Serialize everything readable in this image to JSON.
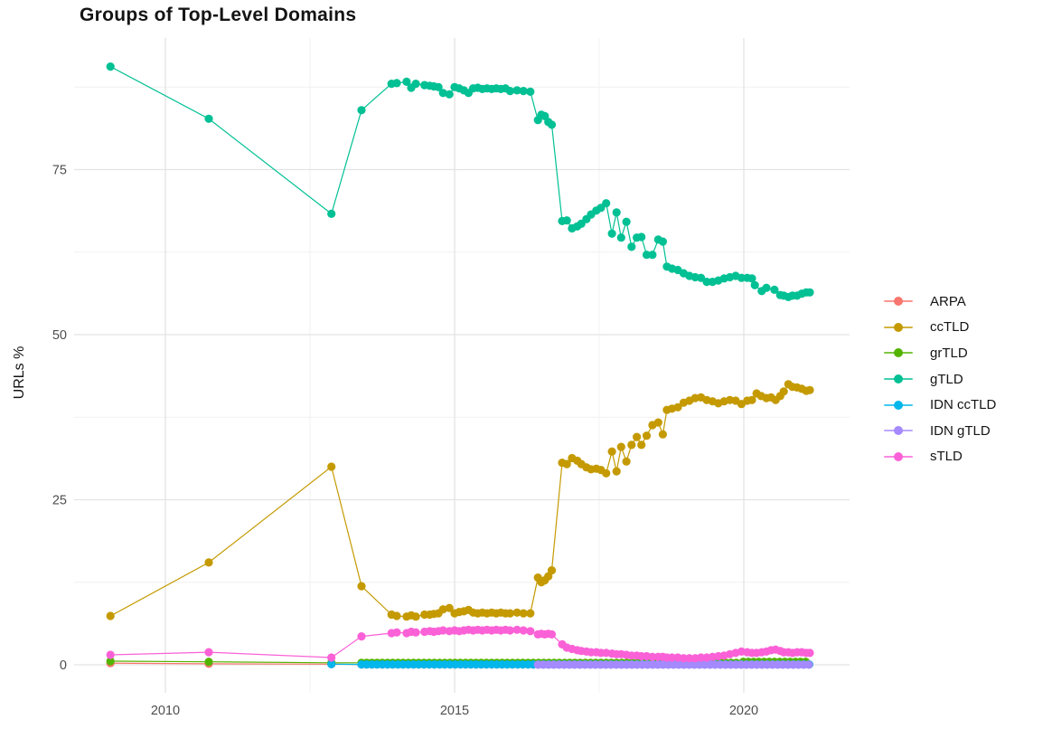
{
  "title": "Groups of Top-Level Domains",
  "y_axis": {
    "label": "URLs %",
    "tick_labels": [
      "0",
      "25",
      "50",
      "75"
    ]
  },
  "x_axis": {
    "tick_labels": [
      "2010",
      "2015",
      "2020"
    ]
  },
  "chart_data": {
    "type": "line",
    "title": "Groups of Top-Level Domains",
    "xlabel": "",
    "ylabel": "URLs %",
    "xlim": [
      2008.4,
      2021.8
    ],
    "ylim": [
      -2.5,
      95
    ],
    "x_ticks": [
      2010,
      2015,
      2020
    ],
    "x_minor_ticks": [
      2012.5,
      2017.5
    ],
    "y_ticks": [
      0,
      25,
      50,
      75
    ],
    "y_minor_ticks": [
      12.5,
      37.5,
      62.5,
      87.5
    ],
    "grid": "major+minor",
    "legend_position": "right",
    "point_radius": 4.6,
    "series": [
      {
        "name": "ARPA",
        "color": "#F8766D",
        "points": [
          [
            2009.05,
            0.25
          ],
          [
            2010.75,
            0.15
          ],
          [
            2012.87,
            0.1
          ]
        ],
        "flat_runs": [
          {
            "from": 2013.39,
            "to": 2021.14,
            "step": 0.09,
            "value": 0.05
          }
        ]
      },
      {
        "name": "ccTLD",
        "color": "#C49A00",
        "points": [
          [
            2009.05,
            7.4
          ],
          [
            2010.75,
            15.5
          ],
          [
            2012.87,
            30.0
          ],
          [
            2013.39,
            11.9
          ],
          [
            2013.91,
            7.6
          ],
          [
            2014.0,
            7.4
          ],
          [
            2014.17,
            7.3
          ],
          [
            2014.25,
            7.5
          ],
          [
            2014.33,
            7.3
          ],
          [
            2014.48,
            7.6
          ],
          [
            2014.57,
            7.6
          ],
          [
            2014.64,
            7.7
          ],
          [
            2014.72,
            7.8
          ],
          [
            2014.8,
            8.4
          ],
          [
            2014.91,
            8.6
          ],
          [
            2015.0,
            7.8
          ],
          [
            2015.08,
            8.0
          ],
          [
            2015.16,
            8.1
          ],
          [
            2015.24,
            8.3
          ],
          [
            2015.32,
            7.9
          ],
          [
            2015.4,
            7.8
          ],
          [
            2015.48,
            7.9
          ],
          [
            2015.56,
            7.8
          ],
          [
            2015.64,
            7.9
          ],
          [
            2015.72,
            7.8
          ],
          [
            2015.8,
            7.9
          ],
          [
            2015.88,
            7.8
          ],
          [
            2015.96,
            7.8
          ],
          [
            2016.08,
            7.9
          ],
          [
            2016.19,
            7.8
          ],
          [
            2016.31,
            7.8
          ],
          [
            2016.44,
            13.2
          ],
          [
            2016.5,
            12.5
          ],
          [
            2016.56,
            12.8
          ],
          [
            2016.62,
            13.4
          ],
          [
            2016.68,
            14.3
          ],
          [
            2016.86,
            30.6
          ],
          [
            2016.94,
            30.4
          ],
          [
            2017.03,
            31.3
          ],
          [
            2017.12,
            30.9
          ],
          [
            2017.19,
            30.4
          ],
          [
            2017.28,
            29.9
          ],
          [
            2017.36,
            29.6
          ],
          [
            2017.45,
            29.7
          ],
          [
            2017.53,
            29.5
          ],
          [
            2017.62,
            29.0
          ],
          [
            2017.72,
            32.3
          ],
          [
            2017.8,
            29.3
          ],
          [
            2017.88,
            33.0
          ],
          [
            2017.97,
            30.8
          ],
          [
            2018.06,
            33.3
          ],
          [
            2018.15,
            34.5
          ],
          [
            2018.23,
            33.3
          ],
          [
            2018.32,
            34.7
          ],
          [
            2018.42,
            36.3
          ],
          [
            2018.52,
            36.7
          ],
          [
            2018.6,
            34.9
          ],
          [
            2018.67,
            38.6
          ],
          [
            2018.76,
            38.8
          ],
          [
            2018.86,
            39.0
          ],
          [
            2018.96,
            39.7
          ],
          [
            2019.06,
            40.0
          ],
          [
            2019.16,
            40.4
          ],
          [
            2019.26,
            40.5
          ],
          [
            2019.36,
            40.1
          ],
          [
            2019.46,
            39.9
          ],
          [
            2019.56,
            39.6
          ],
          [
            2019.66,
            39.9
          ],
          [
            2019.76,
            40.1
          ],
          [
            2019.86,
            40.0
          ],
          [
            2019.96,
            39.5
          ],
          [
            2020.06,
            40.0
          ],
          [
            2020.14,
            40.1
          ],
          [
            2020.22,
            41.1
          ],
          [
            2020.3,
            40.7
          ],
          [
            2020.39,
            40.4
          ],
          [
            2020.47,
            40.5
          ],
          [
            2020.55,
            40.1
          ],
          [
            2020.63,
            40.7
          ],
          [
            2020.69,
            41.4
          ],
          [
            2020.77,
            42.5
          ],
          [
            2020.84,
            42.1
          ],
          [
            2020.92,
            42.0
          ],
          [
            2021.0,
            41.8
          ],
          [
            2021.08,
            41.5
          ],
          [
            2021.14,
            41.6
          ]
        ]
      },
      {
        "name": "grTLD",
        "color": "#53B400",
        "points": [
          [
            2009.05,
            0.55
          ],
          [
            2010.75,
            0.45
          ],
          [
            2012.87,
            0.3
          ]
        ],
        "flat_runs": [
          {
            "from": 2013.39,
            "to": 2019.9,
            "step": 0.09,
            "value": 0.3
          },
          {
            "from": 2019.99,
            "to": 2021.14,
            "step": 0.09,
            "value": 0.45
          }
        ]
      },
      {
        "name": "gTLD",
        "color": "#00C094",
        "points": [
          [
            2009.05,
            90.6
          ],
          [
            2010.75,
            82.7
          ],
          [
            2012.87,
            68.3
          ],
          [
            2013.39,
            84.0
          ],
          [
            2013.91,
            88.0
          ],
          [
            2014.0,
            88.1
          ],
          [
            2014.17,
            88.3
          ],
          [
            2014.25,
            87.4
          ],
          [
            2014.33,
            88.0
          ],
          [
            2014.48,
            87.8
          ],
          [
            2014.57,
            87.7
          ],
          [
            2014.64,
            87.6
          ],
          [
            2014.72,
            87.5
          ],
          [
            2014.8,
            86.6
          ],
          [
            2014.91,
            86.4
          ],
          [
            2015.0,
            87.5
          ],
          [
            2015.08,
            87.3
          ],
          [
            2015.16,
            87.0
          ],
          [
            2015.24,
            86.6
          ],
          [
            2015.32,
            87.3
          ],
          [
            2015.4,
            87.4
          ],
          [
            2015.48,
            87.2
          ],
          [
            2015.56,
            87.3
          ],
          [
            2015.64,
            87.2
          ],
          [
            2015.72,
            87.3
          ],
          [
            2015.8,
            87.2
          ],
          [
            2015.88,
            87.3
          ],
          [
            2015.96,
            86.9
          ],
          [
            2016.08,
            87.0
          ],
          [
            2016.19,
            86.9
          ],
          [
            2016.31,
            86.8
          ],
          [
            2016.44,
            82.5
          ],
          [
            2016.5,
            83.3
          ],
          [
            2016.56,
            83.1
          ],
          [
            2016.62,
            82.2
          ],
          [
            2016.68,
            81.8
          ],
          [
            2016.86,
            67.2
          ],
          [
            2016.94,
            67.3
          ],
          [
            2017.03,
            66.1
          ],
          [
            2017.12,
            66.4
          ],
          [
            2017.19,
            66.8
          ],
          [
            2017.28,
            67.5
          ],
          [
            2017.36,
            68.2
          ],
          [
            2017.45,
            68.8
          ],
          [
            2017.53,
            69.2
          ],
          [
            2017.62,
            69.9
          ],
          [
            2017.72,
            65.3
          ],
          [
            2017.8,
            68.5
          ],
          [
            2017.88,
            64.7
          ],
          [
            2017.97,
            67.1
          ],
          [
            2018.06,
            63.3
          ],
          [
            2018.15,
            64.7
          ],
          [
            2018.23,
            64.8
          ],
          [
            2018.32,
            62.1
          ],
          [
            2018.42,
            62.1
          ],
          [
            2018.52,
            64.4
          ],
          [
            2018.6,
            64.1
          ],
          [
            2018.67,
            60.3
          ],
          [
            2018.76,
            60.0
          ],
          [
            2018.86,
            59.8
          ],
          [
            2018.96,
            59.3
          ],
          [
            2019.06,
            58.9
          ],
          [
            2019.16,
            58.7
          ],
          [
            2019.26,
            58.6
          ],
          [
            2019.36,
            58.0
          ],
          [
            2019.46,
            58.0
          ],
          [
            2019.56,
            58.2
          ],
          [
            2019.66,
            58.5
          ],
          [
            2019.76,
            58.7
          ],
          [
            2019.86,
            58.9
          ],
          [
            2019.96,
            58.6
          ],
          [
            2020.06,
            58.6
          ],
          [
            2020.14,
            58.5
          ],
          [
            2020.19,
            57.5
          ],
          [
            2020.31,
            56.6
          ],
          [
            2020.39,
            57.1
          ],
          [
            2020.53,
            56.8
          ],
          [
            2020.63,
            56.0
          ],
          [
            2020.69,
            55.9
          ],
          [
            2020.77,
            55.7
          ],
          [
            2020.84,
            55.9
          ],
          [
            2020.92,
            55.9
          ],
          [
            2021.0,
            56.2
          ],
          [
            2021.08,
            56.4
          ],
          [
            2021.14,
            56.4
          ]
        ]
      },
      {
        "name": "IDN ccTLD",
        "color": "#00B6EB",
        "points": [
          [
            2012.87,
            0.1
          ]
        ],
        "flat_runs": [
          {
            "from": 2013.39,
            "to": 2021.14,
            "step": 0.09,
            "value": 0.05
          }
        ]
      },
      {
        "name": "IDN gTLD",
        "color": "#A58AFF",
        "points": [],
        "flat_runs": [
          {
            "from": 2016.44,
            "to": 2021.14,
            "step": 0.09,
            "value": 0.02
          }
        ]
      },
      {
        "name": "sTLD",
        "color": "#FB61D7",
        "points": [
          [
            2009.05,
            1.5
          ],
          [
            2010.75,
            1.9
          ],
          [
            2012.87,
            1.1
          ],
          [
            2013.39,
            4.3
          ],
          [
            2013.91,
            4.8
          ],
          [
            2014.0,
            4.9
          ],
          [
            2014.17,
            4.8
          ],
          [
            2014.25,
            5.0
          ],
          [
            2014.33,
            4.9
          ],
          [
            2014.48,
            5.0
          ],
          [
            2014.57,
            5.1
          ],
          [
            2014.64,
            5.0
          ],
          [
            2014.72,
            5.1
          ],
          [
            2014.8,
            5.2
          ],
          [
            2014.91,
            5.1
          ],
          [
            2015.0,
            5.2
          ],
          [
            2015.08,
            5.1
          ],
          [
            2015.16,
            5.2
          ],
          [
            2015.24,
            5.3
          ],
          [
            2015.32,
            5.2
          ],
          [
            2015.4,
            5.3
          ],
          [
            2015.48,
            5.2
          ],
          [
            2015.56,
            5.3
          ],
          [
            2015.64,
            5.2
          ],
          [
            2015.72,
            5.3
          ],
          [
            2015.8,
            5.2
          ],
          [
            2015.88,
            5.3
          ],
          [
            2015.96,
            5.2
          ],
          [
            2016.08,
            5.3
          ],
          [
            2016.19,
            5.2
          ],
          [
            2016.31,
            5.1
          ],
          [
            2016.44,
            4.6
          ],
          [
            2016.5,
            4.7
          ],
          [
            2016.56,
            4.6
          ],
          [
            2016.62,
            4.7
          ],
          [
            2016.68,
            4.6
          ],
          [
            2016.86,
            3.1
          ],
          [
            2016.94,
            2.6
          ],
          [
            2017.03,
            2.4
          ],
          [
            2017.12,
            2.2
          ],
          [
            2017.19,
            2.1
          ],
          [
            2017.28,
            2.0
          ],
          [
            2017.36,
            1.9
          ],
          [
            2017.45,
            1.9
          ],
          [
            2017.53,
            1.8
          ],
          [
            2017.62,
            1.8
          ],
          [
            2017.72,
            1.7
          ],
          [
            2017.8,
            1.6
          ],
          [
            2017.88,
            1.6
          ],
          [
            2017.97,
            1.5
          ],
          [
            2018.06,
            1.4
          ],
          [
            2018.15,
            1.4
          ],
          [
            2018.23,
            1.3
          ],
          [
            2018.32,
            1.3
          ],
          [
            2018.42,
            1.2
          ],
          [
            2018.52,
            1.2
          ],
          [
            2018.6,
            1.2
          ],
          [
            2018.67,
            1.1
          ],
          [
            2018.76,
            1.1
          ],
          [
            2018.86,
            1.1
          ],
          [
            2018.96,
            1.0
          ],
          [
            2019.06,
            1.0
          ],
          [
            2019.16,
            1.0
          ],
          [
            2019.26,
            1.1
          ],
          [
            2019.36,
            1.1
          ],
          [
            2019.46,
            1.2
          ],
          [
            2019.56,
            1.3
          ],
          [
            2019.66,
            1.4
          ],
          [
            2019.76,
            1.6
          ],
          [
            2019.86,
            1.8
          ],
          [
            2019.96,
            2.0
          ],
          [
            2020.06,
            1.9
          ],
          [
            2020.14,
            1.8
          ],
          [
            2020.22,
            1.8
          ],
          [
            2020.31,
            1.9
          ],
          [
            2020.39,
            2.0
          ],
          [
            2020.47,
            2.2
          ],
          [
            2020.55,
            2.3
          ],
          [
            2020.63,
            2.1
          ],
          [
            2020.69,
            1.9
          ],
          [
            2020.77,
            1.9
          ],
          [
            2020.84,
            1.8
          ],
          [
            2020.92,
            1.9
          ],
          [
            2021.0,
            1.9
          ],
          [
            2021.08,
            1.8
          ],
          [
            2021.14,
            1.8
          ]
        ]
      }
    ]
  }
}
